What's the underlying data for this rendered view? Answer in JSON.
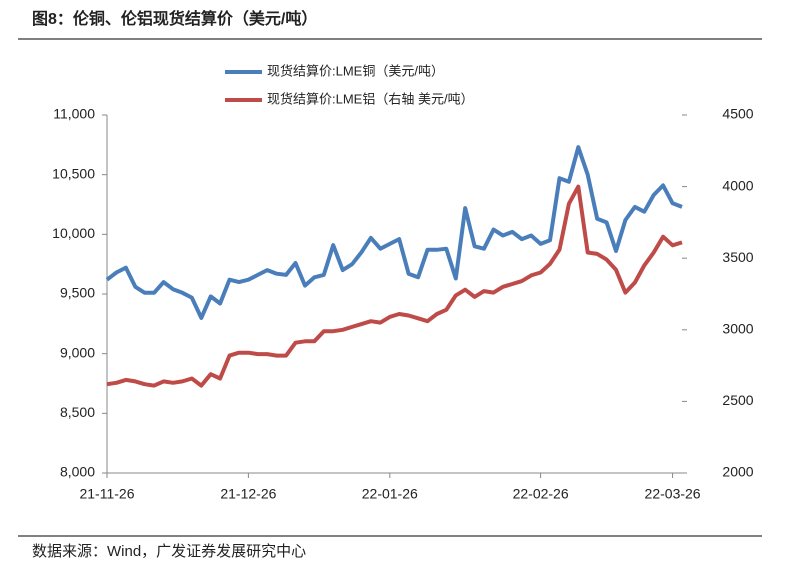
{
  "chart_data": {
    "type": "line",
    "title": "图8：伦铜、伦铝现货结算价（美元/吨）",
    "source": "数据来源：Wind，广发证券发展研究中心",
    "categories": [
      "21-11-26",
      null,
      null,
      null,
      null,
      null,
      null,
      null,
      null,
      null,
      null,
      null,
      null,
      null,
      null,
      "21-12-26",
      null,
      null,
      null,
      null,
      null,
      null,
      null,
      null,
      null,
      null,
      null,
      null,
      null,
      null,
      "22-01-26",
      null,
      null,
      null,
      null,
      null,
      null,
      null,
      null,
      null,
      null,
      null,
      null,
      null,
      null,
      null,
      "22-02-26",
      null,
      null,
      null,
      null,
      null,
      null,
      null,
      null,
      null,
      null,
      null,
      null,
      null,
      "22-03-26",
      null
    ],
    "series": [
      {
        "name": "现货结算价:LME铜（美元/吨）",
        "color": "#4a7ebb",
        "values": [
          9620,
          9680,
          9720,
          9560,
          9510,
          9510,
          9600,
          9540,
          9510,
          9470,
          9300,
          9480,
          9420,
          9620,
          9600,
          9620,
          9660,
          9700,
          9670,
          9660,
          9760,
          9570,
          9640,
          9660,
          9910,
          9700,
          9750,
          9850,
          9970,
          9880,
          9920,
          9960,
          9670,
          9640,
          9870,
          9870,
          9880,
          9630,
          10220,
          9900,
          9880,
          10040,
          9990,
          10020,
          9960,
          9990,
          9920,
          9950,
          10470,
          10440,
          10730,
          10500,
          10130,
          10100,
          9860,
          10120,
          10230,
          10190,
          10330,
          10410,
          10260,
          10230
        ]
      },
      {
        "name": "现货结算价:LME铝（右轴 美元/吨）",
        "color": "#be4b48",
        "axis": "y2",
        "values": [
          2620,
          2630,
          2650,
          2640,
          2620,
          2610,
          2640,
          2630,
          2640,
          2660,
          2610,
          2690,
          2660,
          2820,
          2840,
          2840,
          2830,
          2830,
          2820,
          2820,
          2910,
          2920,
          2920,
          2990,
          2990,
          3000,
          3020,
          3040,
          3060,
          3050,
          3090,
          3110,
          3100,
          3080,
          3060,
          3110,
          3140,
          3240,
          3280,
          3230,
          3270,
          3260,
          3300,
          3320,
          3340,
          3380,
          3400,
          3460,
          3560,
          3880,
          4000,
          3540,
          3530,
          3490,
          3420,
          3260,
          3330,
          3450,
          3540,
          3650,
          3590,
          3610
        ]
      }
    ],
    "ylim": [
      8000,
      11000
    ],
    "yticks": [
      {
        "value": 8000,
        "label": "8,000"
      },
      {
        "value": 8500,
        "label": "8,500"
      },
      {
        "value": 9000,
        "label": "9,000"
      },
      {
        "value": 9500,
        "label": "9,500"
      },
      {
        "value": 10000,
        "label": "10,000"
      },
      {
        "value": 10500,
        "label": "10,500"
      },
      {
        "value": 11000,
        "label": "11,000"
      }
    ],
    "y2lim": [
      2000,
      4500
    ],
    "y2ticks": [
      2000,
      2500,
      3000,
      3500,
      4000,
      4500
    ],
    "grid": false
  }
}
